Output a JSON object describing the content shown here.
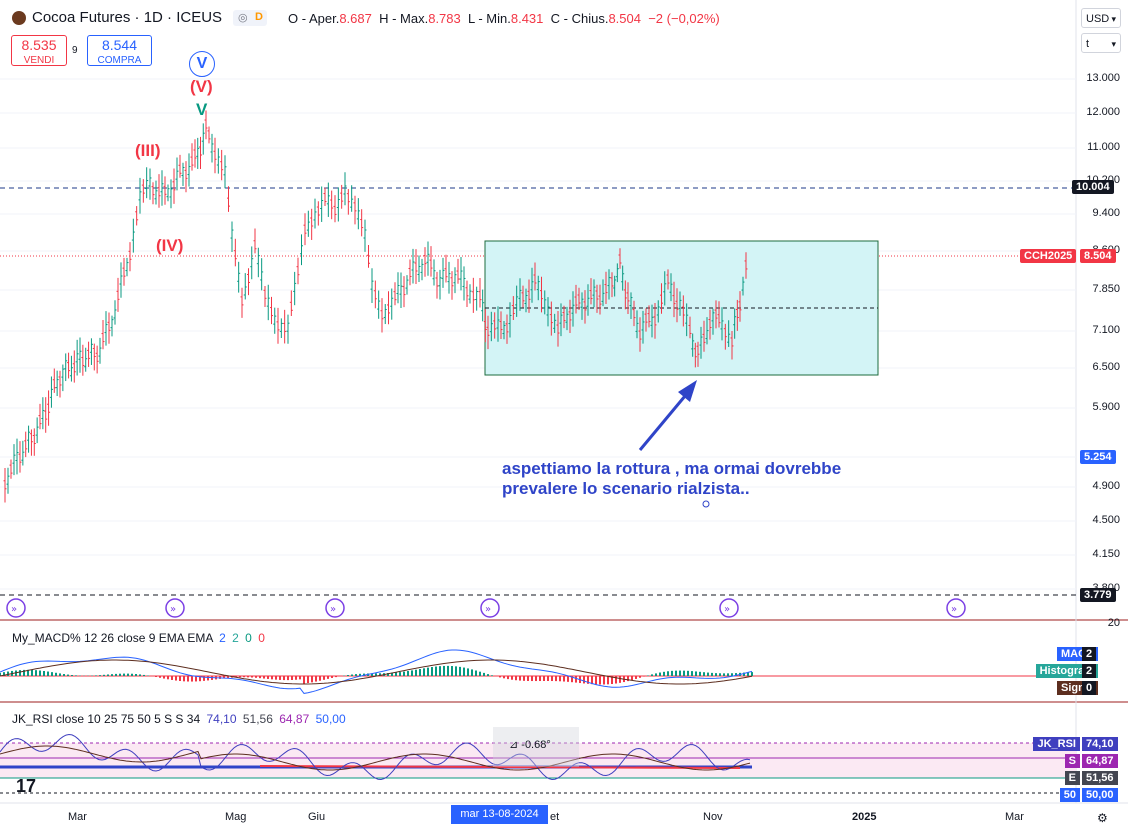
{
  "header": {
    "symbol_title": "Cocoa Futures · 1D · ICEUS",
    "eye_icon": "eye-icon",
    "eye_letter": "D",
    "ohlc": {
      "open_label": "O - Aper.",
      "open": "8.687",
      "high_label": "H - Max.",
      "high": "8.783",
      "low_label": "L - Min.",
      "low": "8.431",
      "close_label": "C - Chius.",
      "close": "8.504",
      "change": "−2 (−0,02%)"
    }
  },
  "trade": {
    "sell_price": "8.535",
    "sell_label": "VENDI",
    "spread": "9",
    "buy_price": "8.544",
    "buy_label": "COMPRA"
  },
  "price_axis": {
    "currency": "USD",
    "scale_button": "t",
    "ticks": [
      "13.000",
      "12.000",
      "11.000",
      "10.200",
      "9.400",
      "8.600",
      "7.850",
      "7.100",
      "6.500",
      "5.900",
      "5.254",
      "4.900",
      "4.500",
      "4.150",
      "3.800"
    ],
    "level_high": "10.004",
    "level_low": "3.779",
    "symbol_tag": "CCH2025",
    "last_price": "8.504"
  },
  "waves": {
    "circle_v": "V",
    "v_paren": "(V)",
    "v_green": "V",
    "iii": "(III)",
    "iv": "(IV)"
  },
  "annotation": {
    "line1": "aspettiamo la rottura , ma ormai dovrebbe",
    "line2": "prevalere lo scenario rialzista.."
  },
  "macd_pane": {
    "title": "My_MACD% 12 26 close 9 EMA EMA",
    "values": [
      "2",
      "2",
      "0",
      "0"
    ],
    "axis_top": "20",
    "tags": [
      {
        "name": "MACD",
        "value": "2",
        "color": "#2962ff"
      },
      {
        "name": "Histogram",
        "value": "2",
        "color": "#26a69a"
      },
      {
        "name": "Signal",
        "value": "0",
        "color": "#5d2e1f"
      }
    ]
  },
  "rsi_pane": {
    "title": "JK_RSI close 10 25 75 50 5 S S 34",
    "values": [
      "74,10",
      "51,56",
      "64,87",
      "50,00"
    ],
    "angle_label": "-0.68°",
    "tags": [
      {
        "name": "JK_RSI",
        "value": "74,10",
        "color": "#3f3fbf"
      },
      {
        "name": "S",
        "value": "64,87",
        "color": "#9c27b0"
      },
      {
        "name": "E",
        "value": "51,56",
        "color": "#434651"
      },
      {
        "name": "50",
        "value": "50,00",
        "color": "#2962ff"
      }
    ]
  },
  "time_axis": {
    "labels": [
      "Mar",
      "Mag",
      "Giu",
      "et",
      "Nov",
      "2025",
      "Mar"
    ],
    "cursor_label": "mar 13-08-2024"
  },
  "colors": {
    "up": "#089981",
    "down": "#f23645",
    "box_fill": "#d3f4f6",
    "box_border": "#1e6b3e",
    "accent": "#2962ff"
  }
}
